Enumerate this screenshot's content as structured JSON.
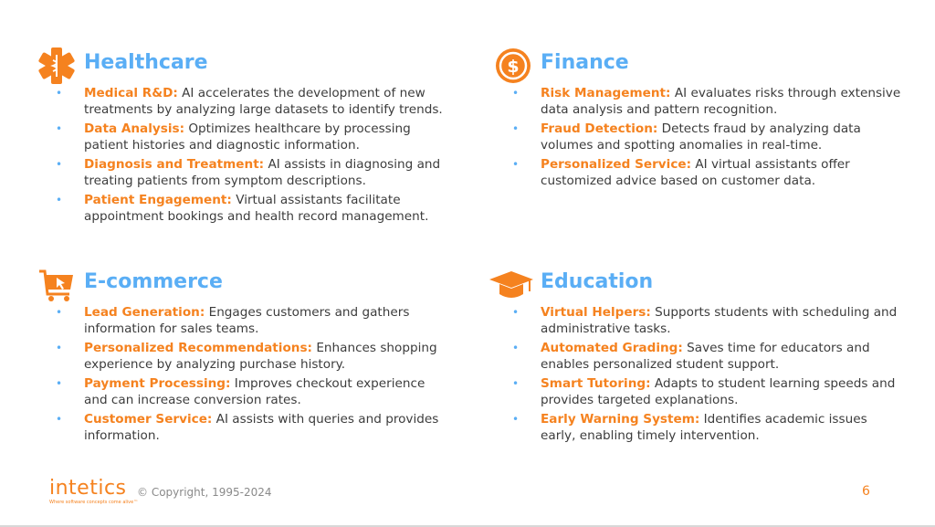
{
  "sections": [
    {
      "title": "Healthcare",
      "icon": "medical-star-of-life-icon",
      "items": [
        {
          "term": "Medical R&D:",
          "text": " AI accelerates the development of new treatments by analyzing large datasets to identify trends."
        },
        {
          "term": "Data Analysis:",
          "text": " Optimizes healthcare by processing patient histories and diagnostic information."
        },
        {
          "term": "Diagnosis and Treatment:",
          "text": " AI assists in diagnosing and treating patients from symptom descriptions."
        },
        {
          "term": "Patient Engagement:",
          "text": " Virtual assistants facilitate appointment bookings and health record management."
        }
      ]
    },
    {
      "title": "Finance",
      "icon": "dollar-coin-icon",
      "items": [
        {
          "term": "Risk Management:",
          "text": " AI evaluates risks through extensive data analysis and pattern recognition."
        },
        {
          "term": "Fraud Detection:",
          "text": " Detects fraud by analyzing data volumes and spotting anomalies in real-time."
        },
        {
          "term": "Personalized Service:",
          "text": " AI virtual assistants offer customized advice based on customer data."
        }
      ]
    },
    {
      "title": "E-commerce",
      "icon": "shopping-cart-icon",
      "items": [
        {
          "term": "Lead Generation:",
          "text": " Engages customers and gathers information for sales teams."
        },
        {
          "term": "Personalized Recommendations:",
          "text": " Enhances shopping experience by analyzing purchase history."
        },
        {
          "term": "Payment Processing:",
          "text": " Improves checkout experience and can increase conversion rates."
        },
        {
          "term": "Customer Service:",
          "text": " AI assists with queries and provides information."
        }
      ]
    },
    {
      "title": "Education",
      "icon": "graduation-cap-icon",
      "items": [
        {
          "term": "Virtual Helpers:",
          "text": " Supports students with scheduling and administrative tasks."
        },
        {
          "term": "Automated Grading:",
          "text": " Saves time for educators and enables personalized student support."
        },
        {
          "term": "Smart Tutoring:",
          "text": " Adapts to student learning speeds and provides targeted explanations."
        },
        {
          "term": "Early Warning System:",
          "text": " Identifies academic issues early, enabling timely intervention."
        }
      ]
    }
  ],
  "bullet": "•",
  "footer": {
    "logo": "intetics",
    "tagline": "Where software concepts come alive™",
    "copyright": "© Copyright, 1995-2024",
    "page": "6"
  },
  "colors": {
    "accent": "#f5821f",
    "heading": "#5aaef5",
    "text": "#3c3c3c"
  }
}
